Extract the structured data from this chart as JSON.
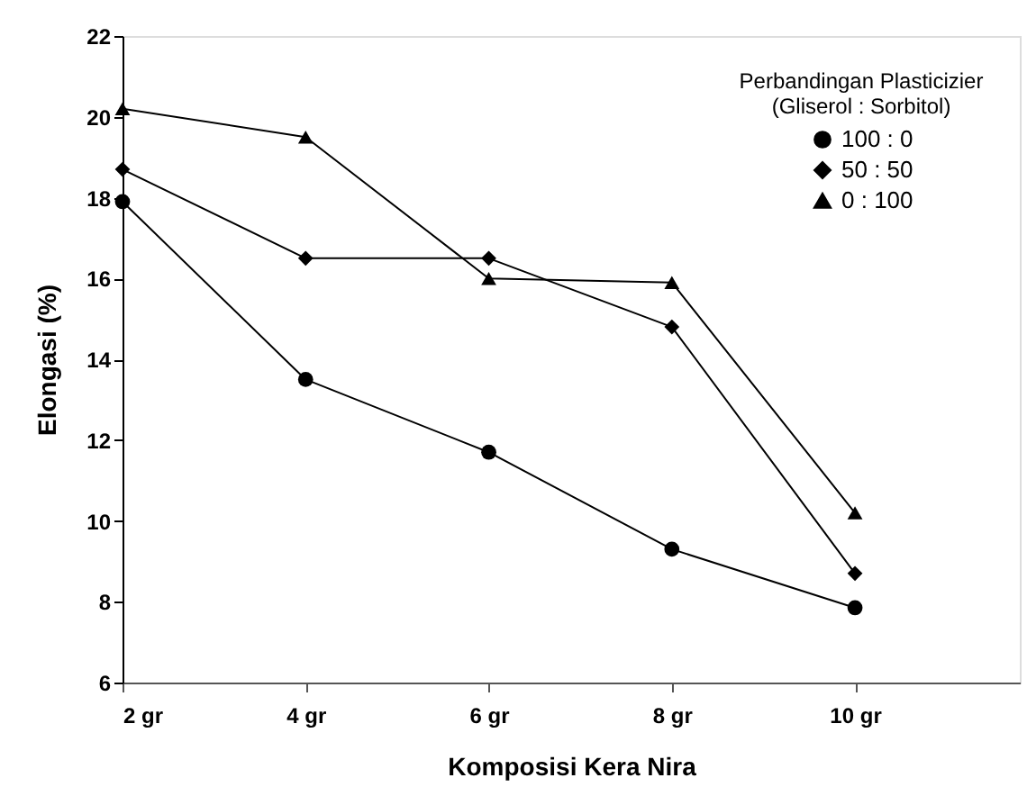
{
  "chart_data": {
    "type": "line",
    "xlabel": "Komposisi Kera Nira",
    "ylabel": "Elongasi (%)",
    "legend_title": "Perbandingan Plasticizier\n(Gliserol : Sorbitol)",
    "x": [
      2,
      4,
      6,
      8,
      10
    ],
    "series": [
      {
        "name": "100 : 0",
        "color": "#000000",
        "marker": "circle",
        "values": [
          17.9,
          13.5,
          11.7,
          9.3,
          7.85
        ]
      },
      {
        "name": "50 : 50",
        "color": "#000000",
        "marker": "diamond",
        "values": [
          18.7,
          16.5,
          16.5,
          14.8,
          8.7
        ]
      },
      {
        "name": "0 : 100",
        "color": "#000000",
        "marker": "triangle",
        "values": [
          20.2,
          19.5,
          16.0,
          15.9,
          10.2
        ]
      }
    ],
    "xlim": [
      2,
      11.8
    ],
    "xticks": [
      {
        "value": 2,
        "label": "2 gr"
      },
      {
        "value": 4,
        "label": "4 gr"
      },
      {
        "value": 6,
        "label": "6 gr"
      },
      {
        "value": 8,
        "label": "8 gr"
      },
      {
        "value": 10,
        "label": "10 gr"
      }
    ],
    "ylim": [
      6,
      22
    ],
    "yticks": [
      6,
      8,
      10,
      12,
      14,
      16,
      18,
      20,
      22
    ],
    "grid": false,
    "legend": "top right",
    "line_style": "solid"
  }
}
